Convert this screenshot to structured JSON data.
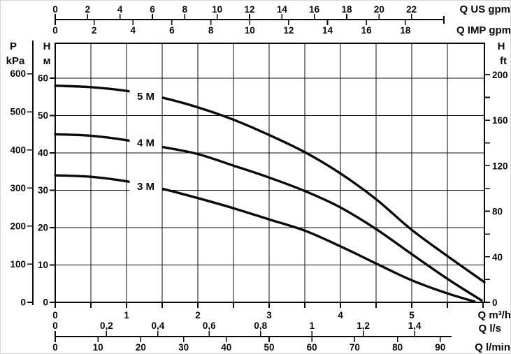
{
  "colors": {
    "ink": "#0a0a0a",
    "background": "#ffffff",
    "frame": "#d6d6d6"
  },
  "chart_data": {
    "type": "line",
    "title": "",
    "xlabel_primary": "Q m³/h",
    "ylabel_primary": "H м",
    "x_range_m3h": [
      0,
      6.02
    ],
    "y_range_m": [
      0,
      69.3
    ],
    "grid": "on",
    "series": [
      {
        "name": "5 M",
        "label_at": {
          "q": 1.27,
          "h_m": 55.2
        },
        "points_q_m3h_h_m": [
          [
            0,
            58
          ],
          [
            0.5,
            57.6
          ],
          [
            1,
            56.6
          ],
          [
            1.5,
            54.8
          ],
          [
            2,
            52.2
          ],
          [
            2.5,
            48.9
          ],
          [
            3,
            44.8
          ],
          [
            3.5,
            40.2
          ],
          [
            4,
            34.5
          ],
          [
            4.5,
            27.6
          ],
          [
            5,
            19.4
          ],
          [
            5.5,
            12.4
          ],
          [
            6.02,
            5.4
          ]
        ]
      },
      {
        "name": "4 M",
        "label_at": {
          "q": 1.27,
          "h_m": 42.8
        },
        "points_q_m3h_h_m": [
          [
            0,
            45
          ],
          [
            0.5,
            44.6
          ],
          [
            1,
            43.4
          ],
          [
            1.5,
            41.6
          ],
          [
            2,
            39.7
          ],
          [
            2.5,
            36.6
          ],
          [
            3,
            33.4
          ],
          [
            3.5,
            29.8
          ],
          [
            4,
            25.4
          ],
          [
            4.5,
            19.6
          ],
          [
            5,
            12.9
          ],
          [
            5.5,
            6.3
          ],
          [
            5.98,
            0.5
          ]
        ]
      },
      {
        "name": "3 M",
        "label_at": {
          "q": 1.27,
          "h_m": 31.1
        },
        "points_q_m3h_h_m": [
          [
            0,
            34
          ],
          [
            0.5,
            33.6
          ],
          [
            1,
            32.4
          ],
          [
            1.5,
            30.4
          ],
          [
            2,
            27.9
          ],
          [
            2.5,
            25.2
          ],
          [
            3,
            22.2
          ],
          [
            3.5,
            19.2
          ],
          [
            4,
            15.0
          ],
          [
            4.5,
            10.4
          ],
          [
            5,
            5.9
          ],
          [
            5.5,
            2.4
          ],
          [
            5.88,
            0.2
          ]
        ]
      }
    ],
    "axes": {
      "top_us_gpm": {
        "unit_label": "Q US gpm",
        "ticks": [
          0,
          2,
          4,
          6,
          8,
          10,
          12,
          14,
          16,
          18,
          20,
          22
        ]
      },
      "top_imp_gpm": {
        "unit_label": "Q IMP gpm",
        "ticks": [
          0,
          2,
          4,
          6,
          8,
          10,
          12,
          14,
          16,
          18
        ]
      },
      "bottom_m3h": {
        "unit_label": "Q m³/h",
        "ticks": [
          0,
          0.5,
          1,
          1.5,
          2,
          2.5,
          3,
          3.5,
          4,
          4.5,
          5,
          5.5,
          6
        ],
        "labeled_ticks": [
          0,
          1,
          2,
          3,
          4,
          5
        ]
      },
      "bottom_l_s": {
        "unit_label": "Q l/s",
        "ticks": [
          0,
          0.2,
          0.4,
          0.6,
          0.8,
          1,
          1.2,
          1.4
        ],
        "tick_labels": [
          "0",
          "0,2",
          "0,4",
          "0,6",
          "0,8",
          "1",
          "1,2",
          "1,4"
        ]
      },
      "bottom_l_min": {
        "unit_label": "Q l/min",
        "ticks": [
          0,
          10,
          20,
          30,
          40,
          50,
          60,
          70,
          80,
          90
        ]
      },
      "left_kpa": {
        "unit_label_lines": [
          "P",
          "kPa"
        ],
        "ticks": [
          0,
          100,
          200,
          300,
          400,
          500,
          600
        ]
      },
      "left_m": {
        "unit_label_lines": [
          "H",
          "м"
        ],
        "ticks": [
          0,
          10,
          20,
          30,
          40,
          50,
          60
        ]
      },
      "right_ft": {
        "unit_label_lines": [
          "H",
          "ft"
        ],
        "ticks": [
          0,
          20,
          40,
          60,
          80,
          100,
          120,
          140,
          160,
          180,
          200
        ],
        "labeled_ticks": [
          0,
          40,
          80,
          120,
          160,
          200
        ]
      }
    }
  }
}
